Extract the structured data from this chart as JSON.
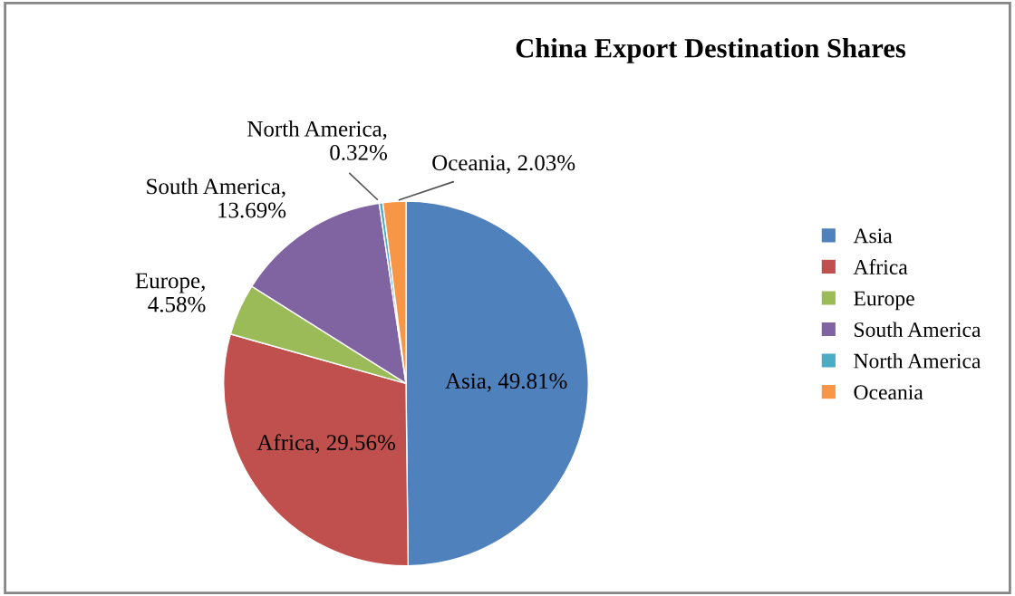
{
  "chart_data": {
    "type": "pie",
    "title": "China Export Destination Shares",
    "categories": [
      "Asia",
      "Africa",
      "Europe",
      "South America",
      "North America",
      "Oceania"
    ],
    "values": [
      49.81,
      29.56,
      4.58,
      13.69,
      0.32,
      2.03
    ],
    "colors": [
      "#4f81bd",
      "#c0504d",
      "#9bbb59",
      "#8064a2",
      "#4bacc6",
      "#f79646"
    ],
    "value_labels": [
      "Asia, 49.81%",
      "Africa, 29.56%",
      "Europe,\n4.58%",
      "South America,\n13.69%",
      "North America,\n0.32%",
      "Oceania, 2.03%"
    ],
    "legend": "right"
  }
}
